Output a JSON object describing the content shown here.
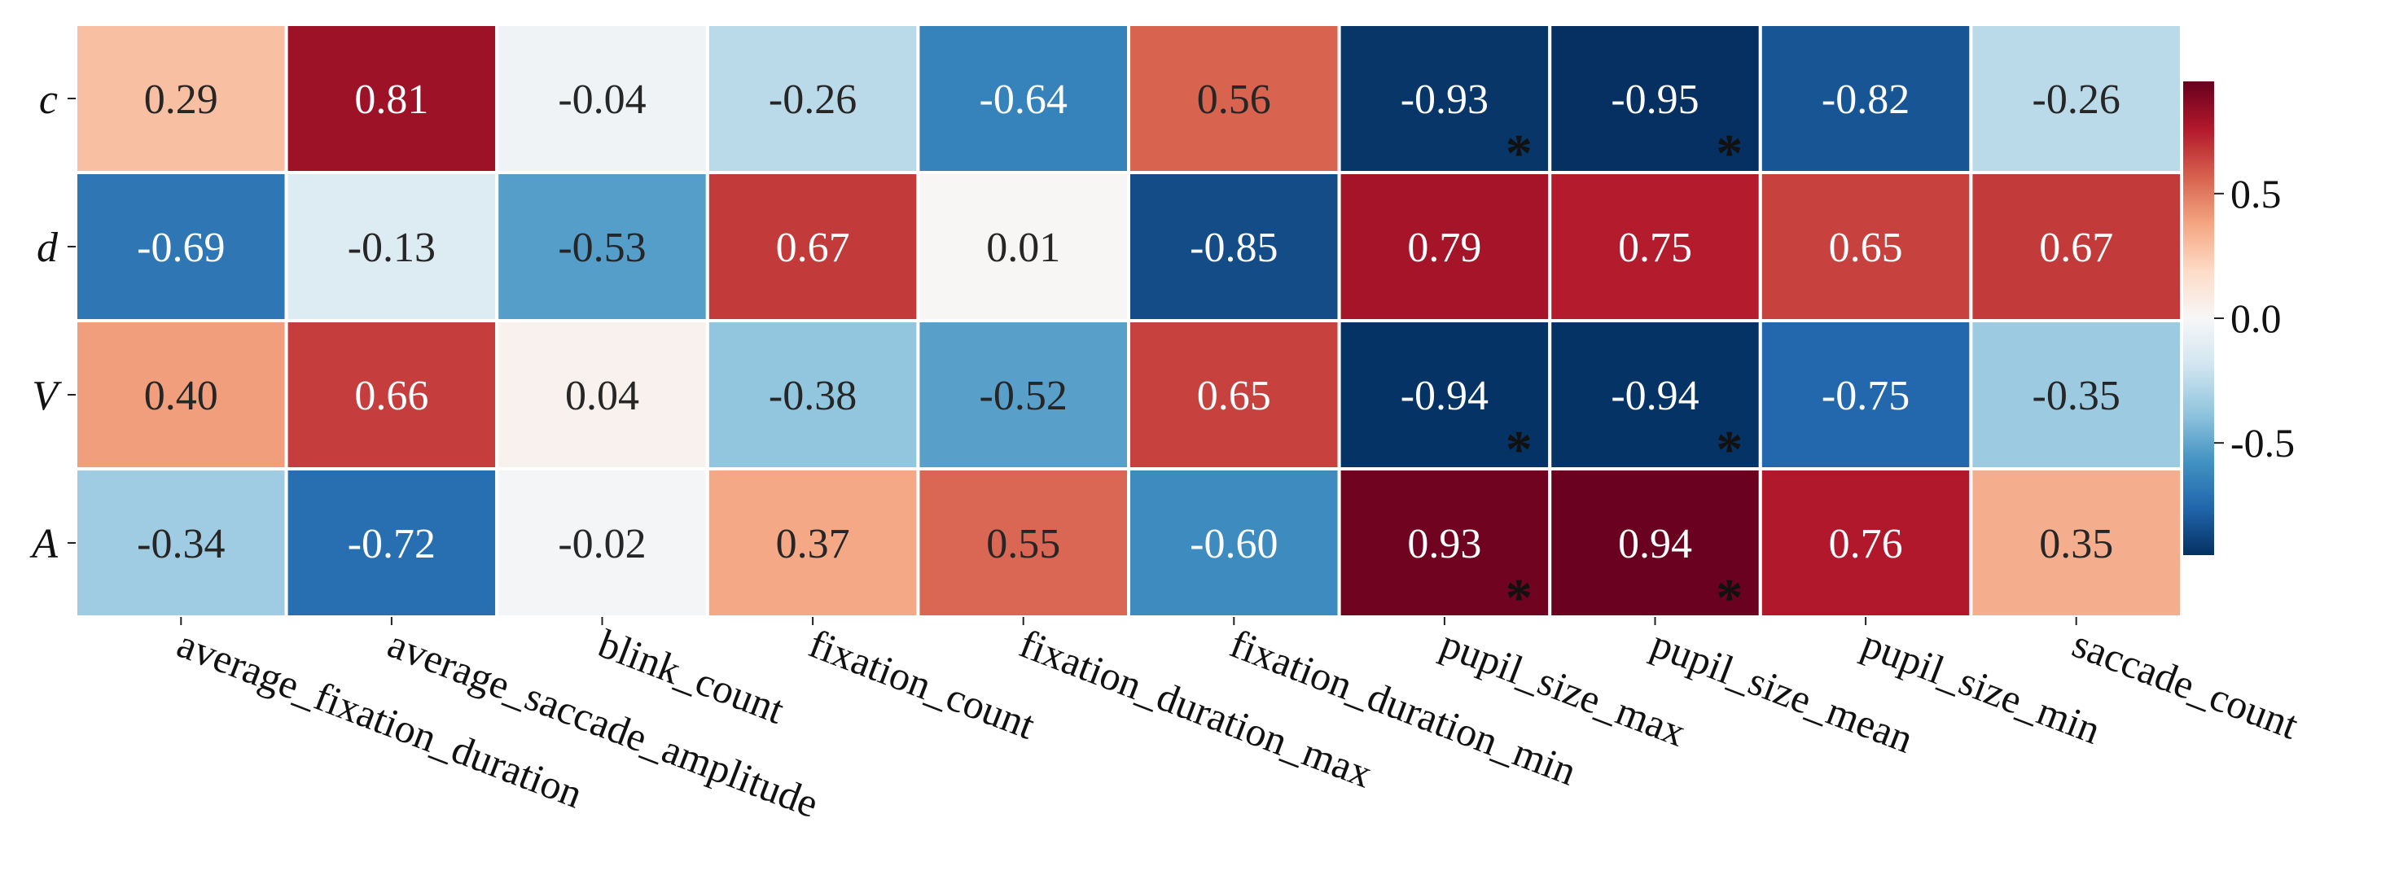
{
  "chart_data": {
    "type": "heatmap",
    "rows": [
      "c",
      "d",
      "V",
      "A"
    ],
    "columns": [
      "average_fixation_duration",
      "average_saccade_amplitude",
      "blink_count",
      "fixation_count",
      "fixation_duration_max",
      "fixation_duration_min",
      "pupil_size_max",
      "pupil_size_mean",
      "pupil_size_min",
      "saccade_count"
    ],
    "values": [
      [
        0.29,
        0.81,
        -0.04,
        -0.26,
        -0.64,
        0.56,
        -0.93,
        -0.95,
        -0.82,
        -0.26
      ],
      [
        -0.69,
        -0.13,
        -0.53,
        0.67,
        0.01,
        -0.85,
        0.79,
        0.75,
        0.65,
        0.67
      ],
      [
        0.4,
        0.66,
        0.04,
        -0.38,
        -0.52,
        0.65,
        -0.94,
        -0.94,
        -0.75,
        -0.35
      ],
      [
        -0.34,
        -0.72,
        -0.02,
        0.37,
        0.55,
        -0.6,
        0.93,
        0.94,
        0.76,
        0.35
      ]
    ],
    "value_labels": [
      [
        "0.29",
        "0.81",
        "-0.04",
        "-0.26",
        "-0.64",
        "0.56",
        "-0.93",
        "-0.95",
        "-0.82",
        "-0.26"
      ],
      [
        "-0.69",
        "-0.13",
        "-0.53",
        "0.67",
        "0.01",
        "-0.85",
        "0.79",
        "0.75",
        "0.65",
        "0.67"
      ],
      [
        "0.40",
        "0.66",
        "0.04",
        "-0.38",
        "-0.52",
        "0.65",
        "-0.94",
        "-0.94",
        "-0.75",
        "-0.35"
      ],
      [
        "-0.34",
        "-0.72",
        "-0.02",
        "0.37",
        "0.55",
        "-0.60",
        "0.93",
        "0.94",
        "0.76",
        "0.35"
      ]
    ],
    "significant": [
      [
        false,
        false,
        false,
        false,
        false,
        false,
        true,
        true,
        false,
        false
      ],
      [
        false,
        false,
        false,
        false,
        false,
        false,
        false,
        false,
        false,
        false
      ],
      [
        false,
        false,
        false,
        false,
        false,
        false,
        true,
        true,
        false,
        false
      ],
      [
        false,
        false,
        false,
        false,
        false,
        false,
        true,
        true,
        false,
        false
      ]
    ],
    "significance_marker": "*",
    "colormap": "RdBu_r",
    "vmin": -0.95,
    "vmax": 0.95,
    "colorbar": {
      "ticks": [
        0.5,
        0.0,
        -0.5
      ],
      "tick_labels": [
        "0.5",
        "0.0",
        "-0.5"
      ],
      "placement": "right"
    },
    "colors": {
      "dark_blue": "#053061",
      "dark_red": "#67001f",
      "neutral": "#f7f7f7",
      "grid_line": "#ffffff"
    }
  }
}
